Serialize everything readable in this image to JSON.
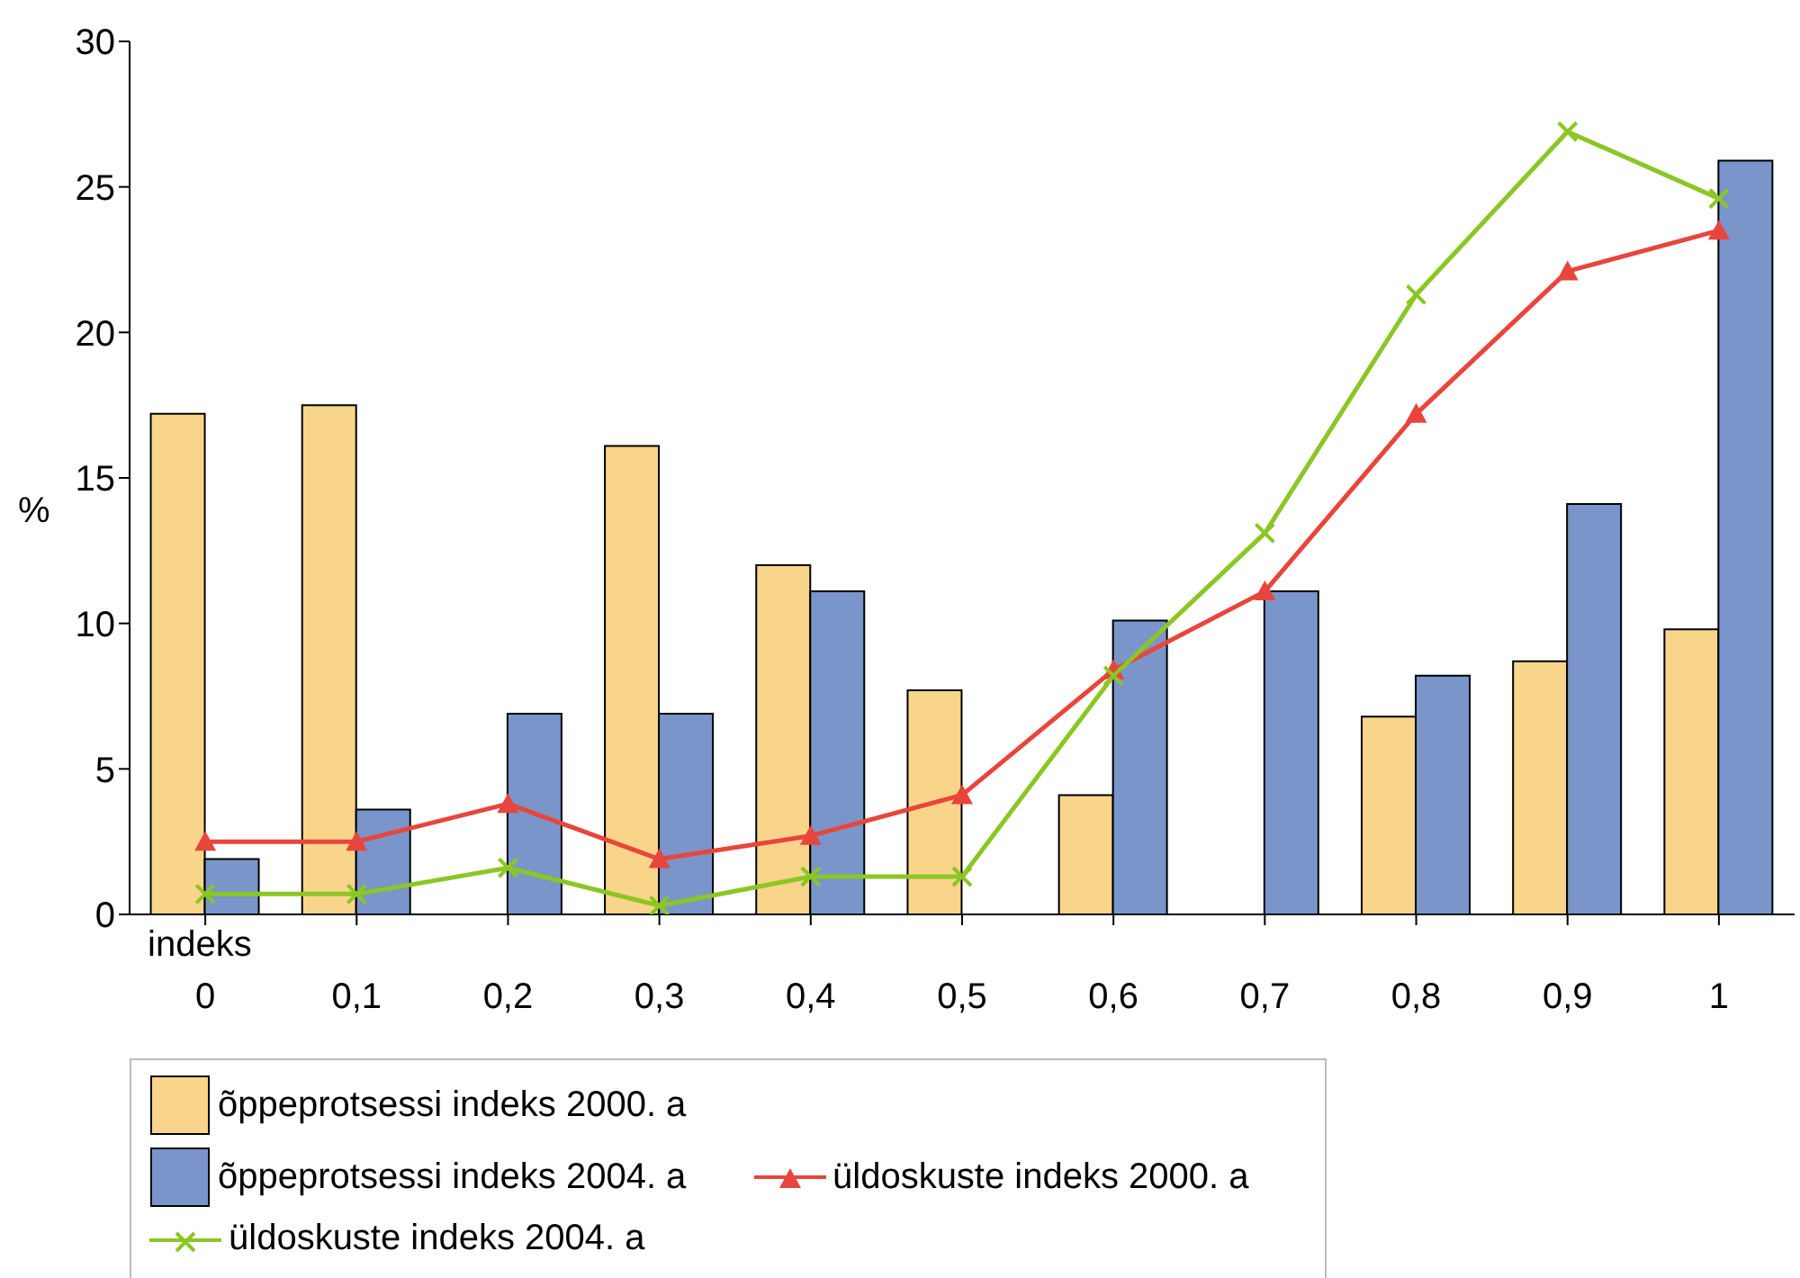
{
  "chart_data": {
    "type": "bar",
    "xlabel": "indeks",
    "ylabel": "%",
    "categories": [
      "0",
      "0,1",
      "0,2",
      "0,3",
      "0,4",
      "0,5",
      "0,6",
      "0,7",
      "0,8",
      "0,9",
      "1"
    ],
    "series": [
      {
        "name": "õppeprotsessi indeks 2000. a",
        "color": "#f8d58b",
        "values": [
          17.2,
          17.5,
          null,
          16.1,
          12.0,
          7.7,
          4.1,
          null,
          6.8,
          8.7,
          9.8
        ]
      },
      {
        "name": "õppeprotsessi indeks 2004. a",
        "color": "#7995ca",
        "values": [
          1.9,
          3.6,
          6.9,
          6.9,
          11.1,
          null,
          10.1,
          11.1,
          8.2,
          14.1,
          25.9
        ]
      },
      {
        "name": "üldoskuste indeks 2000. a",
        "type": "line",
        "marker": "triangle",
        "color": "#e8453c",
        "values": [
          2.5,
          2.5,
          3.8,
          1.9,
          2.7,
          4.1,
          8.4,
          11.1,
          17.2,
          22.1,
          23.5
        ]
      },
      {
        "name": "üldoskuste indeks 2004. a",
        "type": "line",
        "marker": "cross",
        "color": "#8cc625",
        "values": [
          0.7,
          0.7,
          1.6,
          0.3,
          1.3,
          1.3,
          8.2,
          13.1,
          21.3,
          26.9,
          24.6
        ]
      }
    ],
    "ylim": [
      0,
      30
    ],
    "yticks": [
      0,
      5,
      10,
      15,
      20,
      25,
      30
    ],
    "legend": "bottom left",
    "line_style": "solid"
  }
}
